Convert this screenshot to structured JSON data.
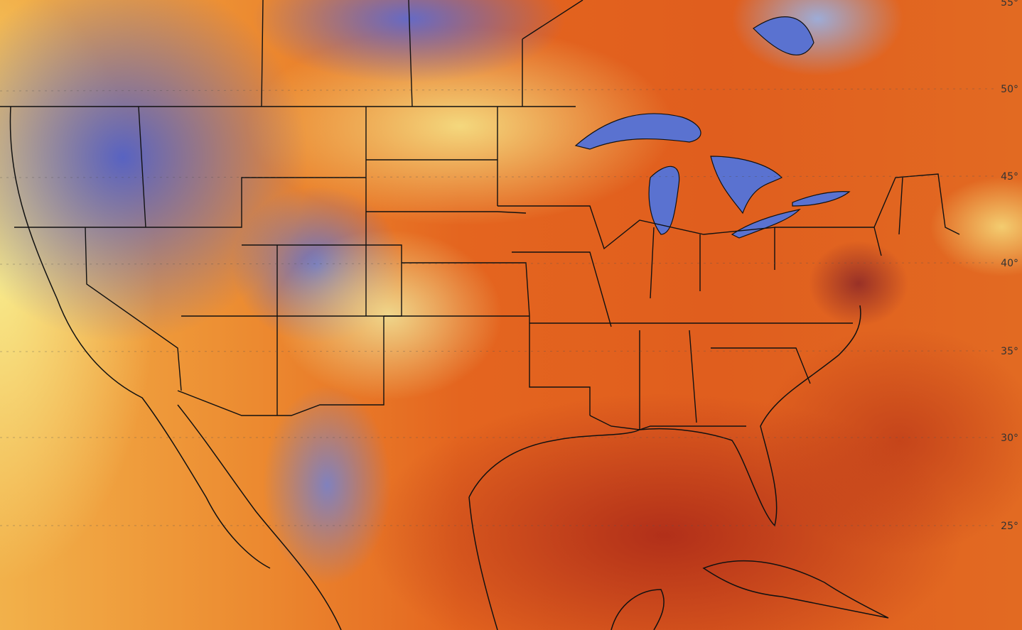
{
  "latitude_labels": [
    "55°",
    "50°",
    "45°",
    "40°",
    "35°",
    "30°",
    "25°"
  ]
}
